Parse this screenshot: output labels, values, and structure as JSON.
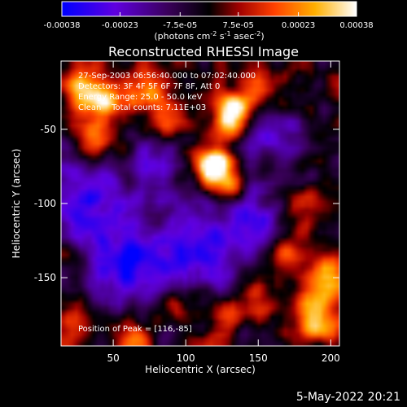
{
  "chart_data": {
    "type": "heatmap",
    "title": "Reconstructed RHESSI Image",
    "xlabel": "Heliocentric X (arcsec)",
    "ylabel": "Heliocentric Y (arcsec)",
    "xlim": [
      14,
      206
    ],
    "ylim": [
      -196,
      -4
    ],
    "x_ticks": [
      "50",
      "100",
      "150",
      "200"
    ],
    "x_tick_values": [
      50,
      100,
      150,
      200
    ],
    "y_ticks": [
      "-50",
      "-100",
      "-150"
    ],
    "y_tick_values": [
      -50,
      -100,
      -150
    ],
    "colorbar": {
      "range": [
        -0.00038,
        0.00038
      ],
      "ticks": [
        "-0.00038",
        "-0.00023",
        "-7.5e-05",
        "7.5e-05",
        "0.00023",
        "0.00038"
      ],
      "tick_values": [
        -0.00038,
        -0.00023,
        -7.5e-05,
        7.5e-05,
        0.00023,
        0.00038
      ],
      "unit": "(photons cm^-2 s^-1 asec^-2)",
      "colors": [
        "#0000ff",
        "#6000e0",
        "#3a005a",
        "#000000",
        "#a00000",
        "#ff4000",
        "#ffb000",
        "#ffffff"
      ]
    },
    "info_lines": [
      "27-Sep-2003 06:56:40.000 to 07:02:40.000",
      "Detectors: 3F 4F 5F 6F 7F 8F, Att 0",
      "Energy Range: 25.0 - 50.0 keV",
      "Clean    Total counts: 7.11E+03"
    ],
    "peak_label": "Position of Peak = [116,-85]",
    "peak": [
      116,
      -85
    ],
    "emission_sources": [
      {
        "x": 118,
        "y": -78,
        "amp": 1.0,
        "s": 9
      },
      {
        "x": 121,
        "y": -73,
        "amp": 0.85,
        "s": 6
      },
      {
        "x": 132,
        "y": -88,
        "amp": 0.55,
        "s": 8
      },
      {
        "x": 134,
        "y": -36,
        "amp": 0.85,
        "s": 8
      },
      {
        "x": 130,
        "y": -46,
        "amp": 0.65,
        "s": 9
      },
      {
        "x": 30,
        "y": -24,
        "amp": 0.85,
        "s": 10
      },
      {
        "x": 48,
        "y": -32,
        "amp": 0.7,
        "s": 10
      },
      {
        "x": 38,
        "y": -58,
        "amp": 0.55,
        "s": 9
      },
      {
        "x": 72,
        "y": -22,
        "amp": 0.55,
        "s": 9
      },
      {
        "x": 90,
        "y": -44,
        "amp": 0.45,
        "s": 9
      },
      {
        "x": 150,
        "y": -22,
        "amp": 0.55,
        "s": 8
      },
      {
        "x": 195,
        "y": -150,
        "amp": 0.75,
        "s": 10
      },
      {
        "x": 185,
        "y": -175,
        "amp": 0.65,
        "s": 9
      },
      {
        "x": 198,
        "y": -185,
        "amp": 0.7,
        "s": 8
      },
      {
        "x": 170,
        "y": -135,
        "amp": 0.55,
        "s": 9
      },
      {
        "x": 150,
        "y": -165,
        "amp": 0.5,
        "s": 9
      },
      {
        "x": 128,
        "y": -178,
        "amp": 0.45,
        "s": 8
      },
      {
        "x": 20,
        "y": -180,
        "amp": 0.5,
        "s": 8
      },
      {
        "x": 60,
        "y": -190,
        "amp": 0.4,
        "s": 9
      },
      {
        "x": 95,
        "y": -168,
        "amp": 0.45,
        "s": 9
      },
      {
        "x": 18,
        "y": -138,
        "amp": 0.45,
        "s": 8
      },
      {
        "x": 178,
        "y": -100,
        "amp": 0.4,
        "s": 8
      },
      {
        "x": 80,
        "y": -110,
        "amp": 0.35,
        "s": 8
      },
      {
        "x": 158,
        "y": -70,
        "amp": 0.35,
        "s": 8
      }
    ],
    "negative_regions": [
      {
        "x": 30,
        "y": -100,
        "amp": 0.8,
        "s": 22
      },
      {
        "x": 60,
        "y": -140,
        "amp": 0.85,
        "s": 22
      },
      {
        "x": 110,
        "y": -130,
        "amp": 0.8,
        "s": 22
      },
      {
        "x": 160,
        "y": -60,
        "amp": 0.7,
        "s": 16
      },
      {
        "x": 150,
        "y": -110,
        "amp": 0.6,
        "s": 16
      },
      {
        "x": 80,
        "y": -75,
        "amp": 0.55,
        "s": 14
      }
    ]
  },
  "timestamp": "5-May-2022 20:21"
}
